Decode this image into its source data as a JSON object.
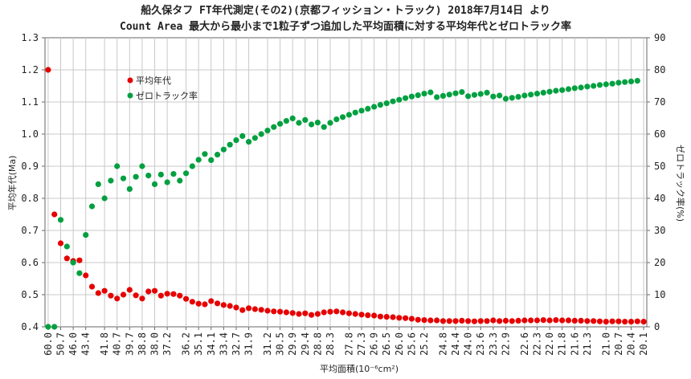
{
  "chart_data": {
    "type": "scatter",
    "title_line1": "船久保タフ FT年代測定(その2)(京都フィッション・トラック) 2018年7月14日 より",
    "title_line2": "Count Area 最大から最小まで1粒子ずつ追加した平均面積に対する平均年代とゼロトラック率",
    "xlabel": "平均面積(10⁻⁶cm²)",
    "ylabel_left": "平均年代(Ma)",
    "ylabel_right": "ゼロトラック率(%)",
    "ylim_left": [
      0.4,
      1.3
    ],
    "ylim_right": [
      0,
      90
    ],
    "yticks_left": [
      "0.4",
      "0.5",
      "0.6",
      "0.7",
      "0.8",
      "0.9",
      "1.0",
      "1.1",
      "1.2",
      "1.3"
    ],
    "yticks_right": [
      "0",
      "10",
      "20",
      "30",
      "40",
      "50",
      "60",
      "70",
      "80",
      "90"
    ],
    "x_tick_labels": [
      "60.0",
      "50.7",
      "46.0",
      "43.4",
      "41.8",
      "40.7",
      "39.7",
      "38.8",
      "38.0",
      "37.2",
      "36.2",
      "35.1",
      "34.1",
      "33.4",
      "32.7",
      "31.9",
      "31.2",
      "30.5",
      "29.9",
      "29.4",
      "28.8",
      "28.3",
      "27.8",
      "27.3",
      "26.9",
      "26.5",
      "26.0",
      "25.6",
      "25.2",
      "24.8",
      "24.4",
      "24.0",
      "23.6",
      "23.3",
      "22.9",
      "22.6",
      "22.3",
      "22.0",
      "21.8",
      "21.6",
      "21.3",
      "21.0",
      "20.7",
      "20.4",
      "20.1"
    ],
    "series": [
      {
        "name": "平均年代",
        "color": "#e60000",
        "axis": "left",
        "values": [
          1.2,
          0.75,
          0.66,
          0.613,
          0.605,
          0.607,
          0.56,
          0.525,
          0.505,
          0.512,
          0.497,
          0.488,
          0.5,
          0.515,
          0.498,
          0.488,
          0.51,
          0.512,
          0.497,
          0.503,
          0.502,
          0.497,
          0.487,
          0.478,
          0.472,
          0.47,
          0.48,
          0.473,
          0.468,
          0.465,
          0.46,
          0.452,
          0.458,
          0.455,
          0.453,
          0.45,
          0.448,
          0.447,
          0.445,
          0.443,
          0.44,
          0.442,
          0.437,
          0.44,
          0.445,
          0.447,
          0.448,
          0.445,
          0.442,
          0.44,
          0.438,
          0.436,
          0.435,
          0.432,
          0.431,
          0.43,
          0.428,
          0.427,
          0.425,
          0.422,
          0.421,
          0.42,
          0.42,
          0.418,
          0.418,
          0.418,
          0.419,
          0.418,
          0.417,
          0.418,
          0.418,
          0.42,
          0.418,
          0.419,
          0.418,
          0.419,
          0.42,
          0.42,
          0.42,
          0.421,
          0.42,
          0.421,
          0.42,
          0.42,
          0.419,
          0.419,
          0.418,
          0.418,
          0.417,
          0.416,
          0.417,
          0.417,
          0.416,
          0.416,
          0.417,
          0.416
        ]
      },
      {
        "name": "ゼロトラック率",
        "color": "#00a040",
        "axis": "right",
        "values": [
          0,
          0,
          33.3,
          25,
          20,
          16.7,
          28.6,
          37.5,
          44.4,
          40,
          45.5,
          50,
          46.2,
          42.9,
          46.7,
          50,
          47.1,
          44.4,
          47.4,
          45,
          47.6,
          45.5,
          47.8,
          50,
          52,
          53.8,
          51.9,
          53.6,
          55.2,
          56.7,
          58.1,
          59.4,
          57.6,
          58.8,
          60,
          61.1,
          62.2,
          63.2,
          64.1,
          64.9,
          63.5,
          64.4,
          63,
          63.6,
          62.2,
          63.5,
          64.6,
          65.3,
          66,
          66.7,
          67.3,
          67.9,
          68.5,
          69.1,
          69.6,
          70.2,
          70.7,
          71.2,
          71.7,
          72.1,
          72.6,
          73,
          71.5,
          71.9,
          72.3,
          72.7,
          73.1,
          71.8,
          72.2,
          72.5,
          72.9,
          71.7,
          72,
          71,
          71.3,
          71.6,
          72,
          72.3,
          72.6,
          72.9,
          73.2,
          73.5,
          73.7,
          74,
          74.3,
          74.5,
          74.8,
          75,
          75.3,
          75.5,
          75.7,
          76,
          76.2,
          76.4,
          76.6
        ]
      }
    ],
    "legend_position": "top-left"
  }
}
